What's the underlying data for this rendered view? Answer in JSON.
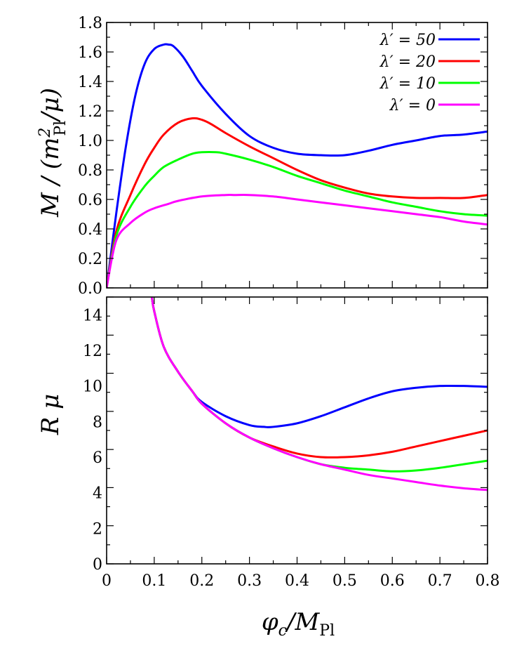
{
  "chart_data": [
    {
      "type": "line",
      "ylabel": "M / (m_Pl^2/μ)",
      "xlim": [
        0,
        0.8
      ],
      "ylim": [
        0,
        1.8
      ],
      "yticks": [
        "0.0",
        "0.2",
        "0.4",
        "0.6",
        "0.8",
        "1.0",
        "1.2",
        "1.4",
        "1.6",
        "1.8"
      ],
      "xticks_shown": false,
      "grid": false,
      "legend": "top-right",
      "series": [
        {
          "name": "λ′ = 50",
          "color": "#0000ff",
          "x": [
            0,
            0.02,
            0.04,
            0.06,
            0.08,
            0.1,
            0.12,
            0.13,
            0.14,
            0.16,
            0.18,
            0.2,
            0.25,
            0.3,
            0.35,
            0.4,
            0.45,
            0.5,
            0.55,
            0.6,
            0.65,
            0.7,
            0.75,
            0.8
          ],
          "y": [
            0,
            0.5,
            0.95,
            1.3,
            1.52,
            1.62,
            1.65,
            1.65,
            1.64,
            1.57,
            1.47,
            1.37,
            1.18,
            1.03,
            0.95,
            0.91,
            0.9,
            0.9,
            0.93,
            0.97,
            1.0,
            1.03,
            1.04,
            1.06
          ]
        },
        {
          "name": "λ′ = 20",
          "color": "#ff0000",
          "x": [
            0,
            0.02,
            0.05,
            0.08,
            0.1,
            0.12,
            0.15,
            0.18,
            0.2,
            0.22,
            0.25,
            0.3,
            0.35,
            0.4,
            0.45,
            0.5,
            0.55,
            0.6,
            0.65,
            0.7,
            0.75,
            0.8
          ],
          "y": [
            0,
            0.38,
            0.63,
            0.84,
            0.95,
            1.04,
            1.12,
            1.15,
            1.14,
            1.11,
            1.05,
            0.96,
            0.88,
            0.8,
            0.73,
            0.68,
            0.64,
            0.62,
            0.61,
            0.61,
            0.61,
            0.63
          ]
        },
        {
          "name": "λ′ = 10",
          "color": "#00ff00",
          "x": [
            0,
            0.02,
            0.05,
            0.08,
            0.1,
            0.12,
            0.15,
            0.18,
            0.2,
            0.23,
            0.25,
            0.3,
            0.35,
            0.4,
            0.45,
            0.5,
            0.55,
            0.6,
            0.65,
            0.7,
            0.75,
            0.8
          ],
          "y": [
            0,
            0.35,
            0.55,
            0.69,
            0.76,
            0.82,
            0.87,
            0.91,
            0.92,
            0.92,
            0.91,
            0.87,
            0.82,
            0.76,
            0.71,
            0.66,
            0.62,
            0.58,
            0.55,
            0.52,
            0.5,
            0.49
          ]
        },
        {
          "name": "λ′ = 0",
          "color": "#ff00ff",
          "x": [
            0,
            0.02,
            0.05,
            0.08,
            0.1,
            0.13,
            0.15,
            0.2,
            0.25,
            0.27,
            0.3,
            0.35,
            0.4,
            0.45,
            0.5,
            0.55,
            0.6,
            0.65,
            0.7,
            0.75,
            0.8
          ],
          "y": [
            0,
            0.32,
            0.44,
            0.51,
            0.54,
            0.57,
            0.59,
            0.62,
            0.63,
            0.63,
            0.63,
            0.62,
            0.6,
            0.58,
            0.56,
            0.54,
            0.52,
            0.5,
            0.48,
            0.45,
            0.43
          ]
        }
      ]
    },
    {
      "type": "line",
      "xlabel": "φc/MPl",
      "ylabel": "Rμ",
      "xlim": [
        0,
        0.8
      ],
      "ylim": [
        0,
        15
      ],
      "xticks": [
        "0",
        "0.1",
        "0.2",
        "0.3",
        "0.4",
        "0.5",
        "0.6",
        "0.7",
        "0.8"
      ],
      "yticks": [
        "0",
        "2",
        "4",
        "6",
        "8",
        "10",
        "12",
        "14"
      ],
      "grid": false,
      "series": [
        {
          "name": "λ′ = 50",
          "color": "#0000ff",
          "x": [
            0.095,
            0.1,
            0.12,
            0.15,
            0.18,
            0.2,
            0.25,
            0.3,
            0.33,
            0.35,
            0.4,
            0.45,
            0.5,
            0.55,
            0.6,
            0.65,
            0.7,
            0.75,
            0.8
          ],
          "y": [
            15,
            14.2,
            12.2,
            10.8,
            9.7,
            9.1,
            8.3,
            7.8,
            7.7,
            7.7,
            7.9,
            8.3,
            8.8,
            9.3,
            9.7,
            9.9,
            10.0,
            10.0,
            9.95
          ]
        },
        {
          "name": "λ′ = 20",
          "color": "#ff0000",
          "x": [
            0.095,
            0.1,
            0.12,
            0.15,
            0.18,
            0.2,
            0.25,
            0.3,
            0.35,
            0.4,
            0.45,
            0.5,
            0.55,
            0.6,
            0.65,
            0.7,
            0.75,
            0.8
          ],
          "y": [
            15,
            14.2,
            12.2,
            10.8,
            9.7,
            9.0,
            7.9,
            7.1,
            6.6,
            6.2,
            6.0,
            6.0,
            6.1,
            6.3,
            6.6,
            6.9,
            7.2,
            7.5
          ]
        },
        {
          "name": "λ′ = 10",
          "color": "#00ff00",
          "x": [
            0.095,
            0.1,
            0.12,
            0.15,
            0.18,
            0.2,
            0.25,
            0.3,
            0.35,
            0.4,
            0.45,
            0.5,
            0.55,
            0.6,
            0.65,
            0.7,
            0.75,
            0.8
          ],
          "y": [
            15,
            14.2,
            12.2,
            10.8,
            9.7,
            9.0,
            7.9,
            7.1,
            6.5,
            6.0,
            5.6,
            5.4,
            5.3,
            5.2,
            5.25,
            5.4,
            5.6,
            5.8
          ]
        },
        {
          "name": "λ′ = 0",
          "color": "#ff00ff",
          "x": [
            0.095,
            0.1,
            0.12,
            0.15,
            0.18,
            0.2,
            0.25,
            0.3,
            0.35,
            0.4,
            0.45,
            0.5,
            0.55,
            0.6,
            0.65,
            0.7,
            0.75,
            0.8
          ],
          "y": [
            15,
            14.2,
            12.2,
            10.8,
            9.7,
            9.0,
            7.9,
            7.1,
            6.5,
            6.0,
            5.6,
            5.3,
            5.0,
            4.8,
            4.6,
            4.4,
            4.25,
            4.15
          ]
        }
      ]
    }
  ]
}
